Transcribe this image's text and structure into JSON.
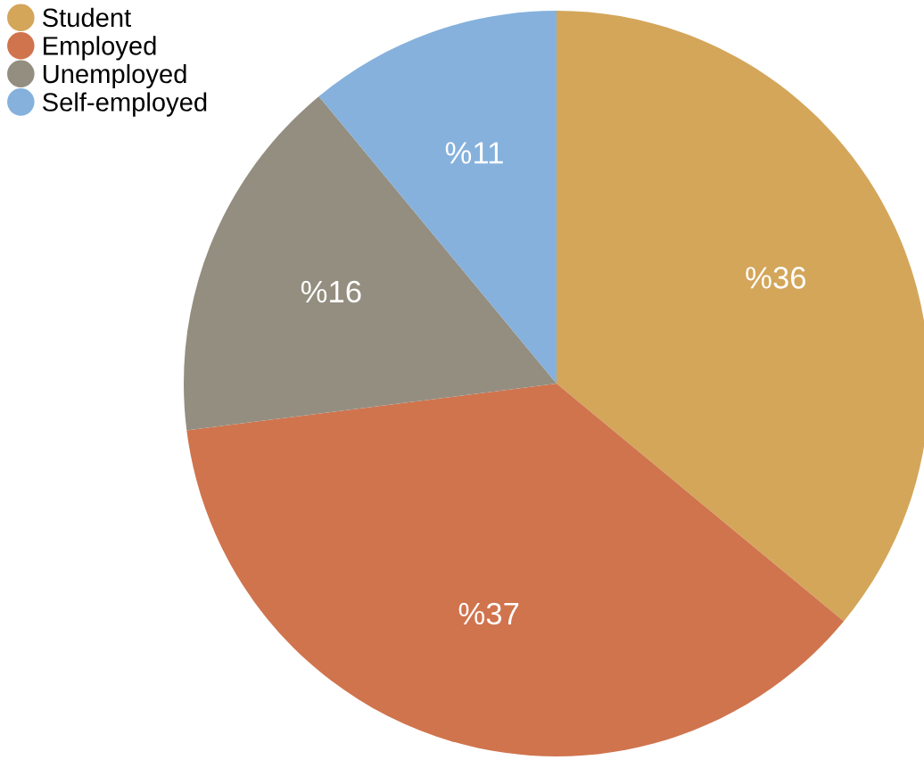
{
  "chart_data": {
    "type": "pie",
    "categories": [
      "Student",
      "Employed",
      "Unemployed",
      "Self-employed"
    ],
    "values": [
      36,
      37,
      16,
      11
    ],
    "colors": [
      "#d4a65a",
      "#d0744e",
      "#948e80",
      "#85b1dc"
    ],
    "value_labels": [
      "%36",
      "%37",
      "%16",
      "%11"
    ],
    "legend": "top left"
  }
}
